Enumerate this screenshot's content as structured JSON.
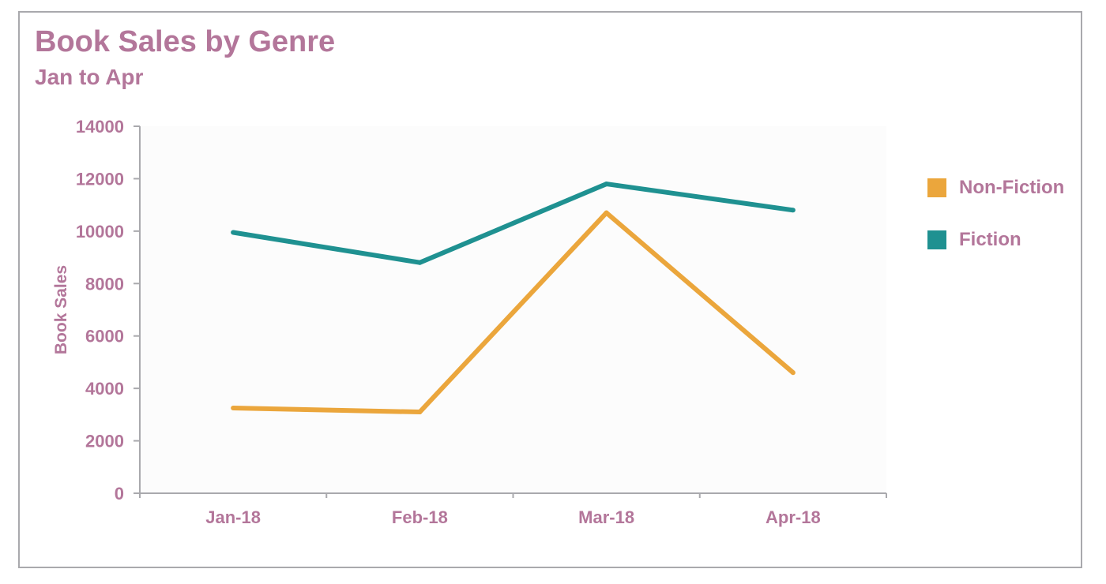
{
  "chart_data": {
    "type": "line",
    "title": "Book Sales by Genre",
    "subtitle": "Jan to Apr",
    "ylabel": "Book Sales",
    "xlabel": "",
    "categories": [
      "Jan-18",
      "Feb-18",
      "Mar-18",
      "Apr-18"
    ],
    "ylim": [
      0,
      14000
    ],
    "yticks": [
      "0",
      "2000",
      "4000",
      "6000",
      "8000",
      "10000",
      "12000",
      "14000"
    ],
    "series": [
      {
        "name": "Non-Fiction",
        "color": "#eba63c",
        "values": [
          3250,
          3100,
          10700,
          4600
        ]
      },
      {
        "name": "Fiction",
        "color": "#1f9191",
        "values": [
          9950,
          8800,
          11800,
          10800
        ]
      }
    ],
    "legend_position": "right",
    "grid": false
  },
  "colors": {
    "text": "#b3769a",
    "axis": "#a9a9ad",
    "plot_background": "#fcfcfc"
  }
}
